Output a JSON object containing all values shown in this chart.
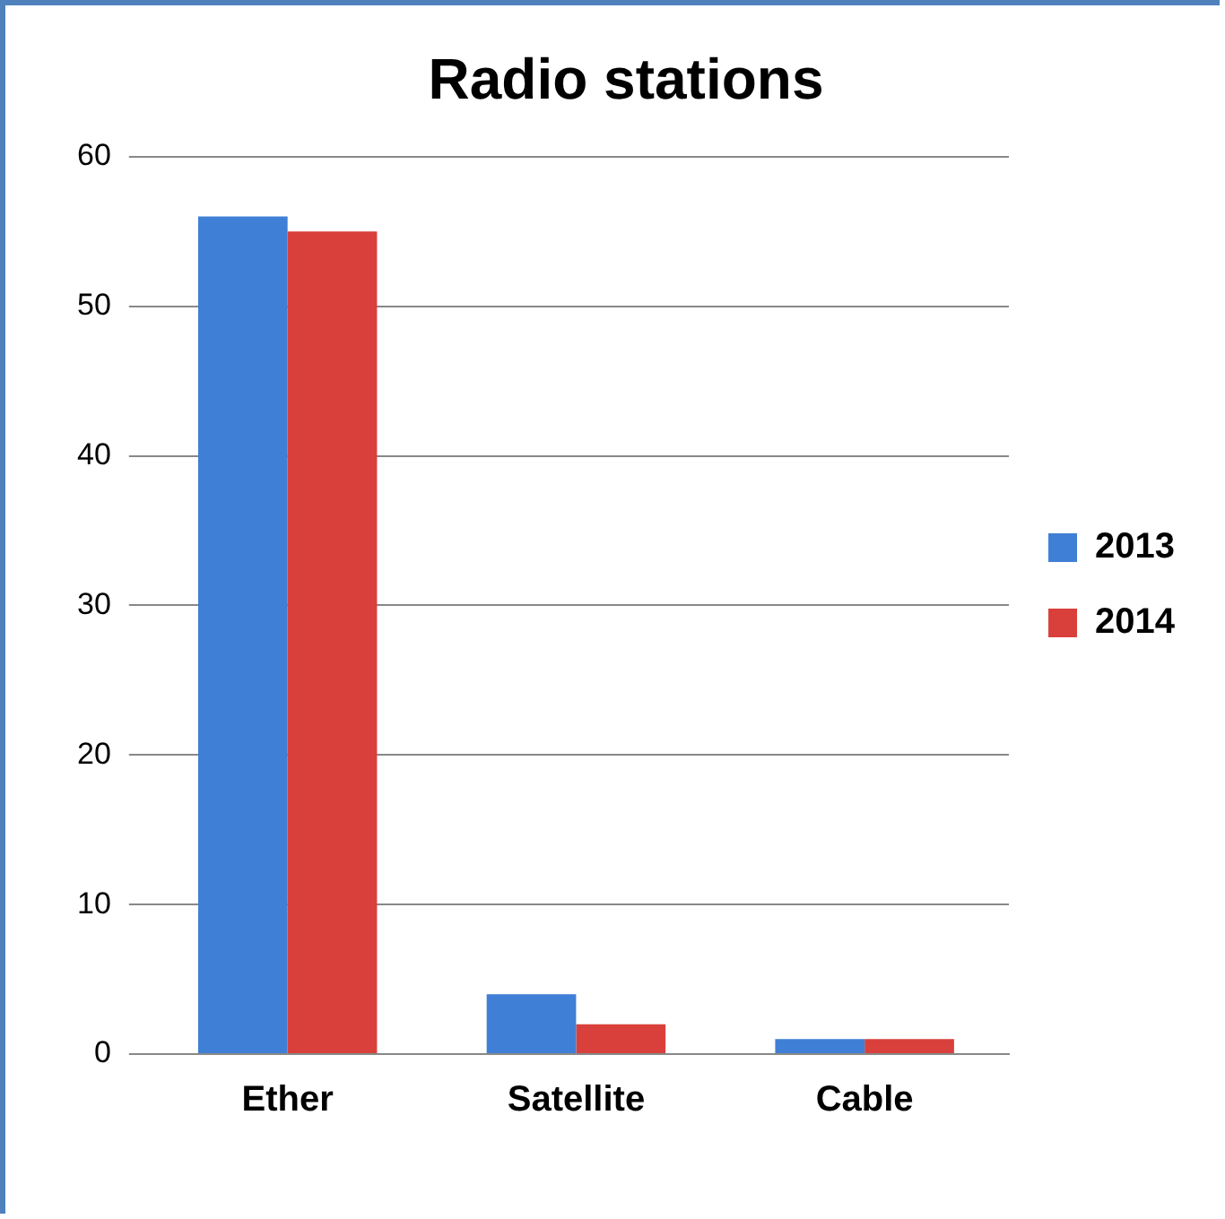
{
  "chart_data": {
    "type": "bar",
    "title": "Radio stations",
    "categories": [
      "Ether",
      "Satellite",
      "Cable"
    ],
    "series": [
      {
        "name": "2013",
        "color": "#3f7fd6",
        "values": [
          56,
          4,
          1
        ]
      },
      {
        "name": "2014",
        "color": "#d9403b",
        "values": [
          55,
          2,
          1
        ]
      }
    ],
    "ylim": [
      0,
      60
    ],
    "yticks": [
      0,
      10,
      20,
      30,
      40,
      50,
      60
    ],
    "grid": "y",
    "legend": "right"
  }
}
